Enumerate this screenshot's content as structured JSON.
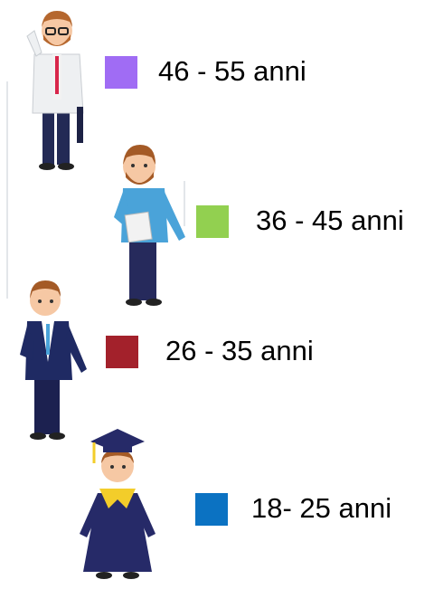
{
  "legend": {
    "items": [
      {
        "label": "46 - 55 anni",
        "color": "#a06cf4"
      },
      {
        "label": "36 - 45 anni",
        "color": "#92d050"
      },
      {
        "label": "26 - 35 anni",
        "color": "#a3212b"
      },
      {
        "label": "18- 25 anni",
        "color": "#0b72c2"
      }
    ]
  }
}
